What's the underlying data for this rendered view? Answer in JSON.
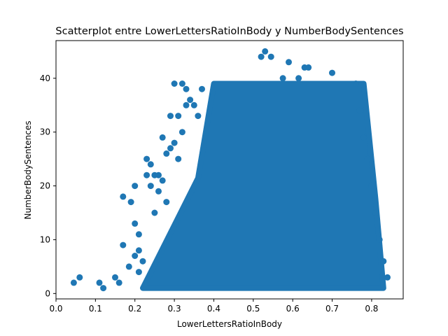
{
  "chart_data": {
    "type": "scatter",
    "title": "Scatterplot entre LowerLettersRatioInBody y NumberBodySentences",
    "xlabel": "LowerLettersRatioInBody",
    "ylabel": "NumberBodySentences",
    "xlim": [
      0.0,
      0.88
    ],
    "ylim": [
      -1,
      47
    ],
    "x_ticks": [
      "0.0",
      "0.1",
      "0.2",
      "0.3",
      "0.4",
      "0.5",
      "0.6",
      "0.7",
      "0.8"
    ],
    "y_ticks": [
      "0",
      "10",
      "20",
      "30",
      "40"
    ],
    "grid": false,
    "marker_color": "#1f77b4",
    "dense_region": {
      "x_range_at_y_max": [
        0.4,
        0.78
      ],
      "x_range_at_y_min": [
        0.22,
        0.83
      ],
      "y_range": [
        1,
        39
      ]
    },
    "series": [
      {
        "x": [
          0.045,
          0.06,
          0.11,
          0.12,
          0.15,
          0.16,
          0.17,
          0.17,
          0.185,
          0.19,
          0.2,
          0.2,
          0.2,
          0.21,
          0.21,
          0.21,
          0.22,
          0.23,
          0.23,
          0.24,
          0.24,
          0.25,
          0.25,
          0.26,
          0.26,
          0.27,
          0.27,
          0.28,
          0.28,
          0.29,
          0.29,
          0.3,
          0.3,
          0.31,
          0.31,
          0.32,
          0.32,
          0.33,
          0.33,
          0.34,
          0.35,
          0.36,
          0.37,
          0.52,
          0.53,
          0.545,
          0.575,
          0.59,
          0.615,
          0.63,
          0.64,
          0.7,
          0.76,
          0.77,
          0.78,
          0.79,
          0.8,
          0.81,
          0.82,
          0.83,
          0.84
        ],
        "y": [
          2,
          3,
          2,
          1,
          3,
          2,
          18,
          9,
          5,
          17,
          20,
          13,
          7,
          11,
          8,
          4,
          6,
          25,
          22,
          24,
          20,
          22,
          15,
          22,
          19,
          29,
          21,
          26,
          17,
          27,
          33,
          39,
          28,
          33,
          25,
          39,
          30,
          38,
          35,
          36,
          35,
          33,
          38,
          44,
          45,
          44,
          40,
          43,
          40,
          42,
          42,
          41,
          39,
          34,
          29,
          25,
          20,
          15,
          10,
          6,
          3
        ]
      }
    ]
  }
}
